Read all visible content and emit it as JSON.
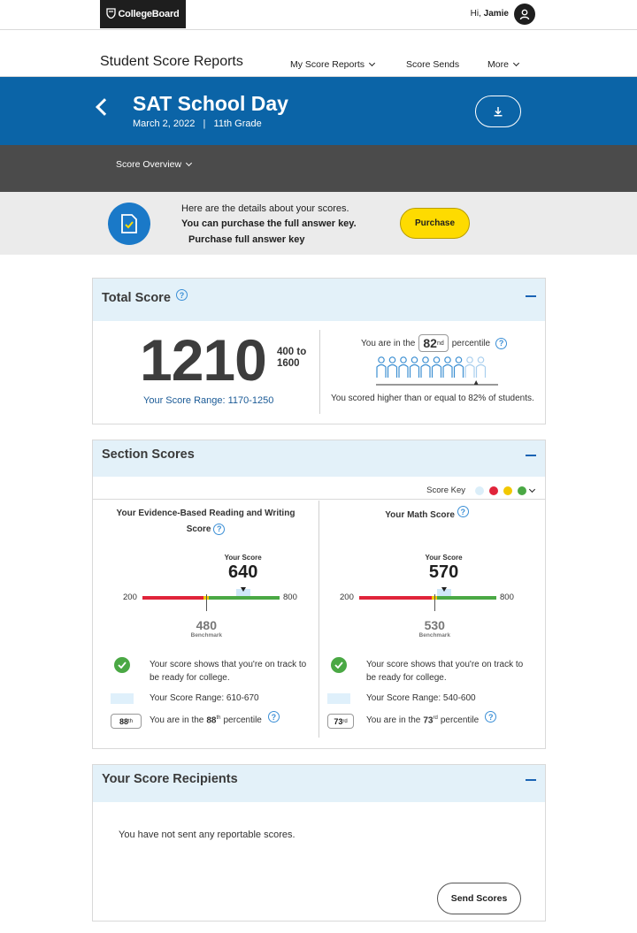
{
  "header": {
    "logo": "CollegeBoard",
    "greeting_prefix": "Hi,",
    "user_name": "Jamie"
  },
  "subnav": {
    "title": "Student Score Reports",
    "links": [
      "My Score Reports",
      "Score Sends",
      "More"
    ]
  },
  "hero": {
    "title": "SAT School Day",
    "subtitle": "March 2, 2022   |   11th Grade"
  },
  "tabbar": {
    "tab": "Score Overview"
  },
  "info": {
    "line1": "Here are the details about your scores.",
    "line2": "You can purchase the full answer key.",
    "line3": "Purchase full answer key",
    "purchase_button": "Purchase"
  },
  "total": {
    "heading": "Total Score",
    "score": "1210",
    "scale": "400 to 1600",
    "range": "Your Score Range: 1170-1250",
    "percentile_prefix": "You are in the",
    "percentile": "82",
    "percentile_sup": "nd",
    "percentile_suffix": "percentile",
    "percentile_fraction": 0.82,
    "higher_text": "You scored higher than or equal to 82% of students."
  },
  "sections": {
    "heading": "Section Scores",
    "score_key_label": "Score Key",
    "key_colors": [
      "#dbeef9",
      "#e0243a",
      "#f2c800",
      "#4aa844"
    ],
    "ebrw": {
      "title_line1": "Your Evidence-Based Reading and Writing",
      "title_line2": "Score",
      "your_score_label": "Your Score",
      "score": "640",
      "score_value": 640,
      "min": "200",
      "max": "800",
      "benchmark": "480",
      "benchmark_value": 480,
      "benchmark_label": "Benchmark",
      "status": "Your score shows that you're on track to be ready for college.",
      "range": "Your Score Range: 610-670",
      "percentile": "88",
      "percentile_sup": "th",
      "pct_prefix": "You are in the",
      "pct_suffix": "percentile"
    },
    "math": {
      "title_line1": "Your Math Score",
      "your_score_label": "Your Score",
      "score": "570",
      "score_value": 570,
      "min": "200",
      "max": "800",
      "benchmark": "530",
      "benchmark_value": 530,
      "benchmark_label": "Benchmark",
      "status": "Your score shows that you're on track to be ready for college.",
      "range": "Your Score Range: 540-600",
      "percentile": "73",
      "percentile_sup": "rd",
      "pct_prefix": "You are in the",
      "pct_suffix": "percentile"
    }
  },
  "recipients": {
    "heading": "Your Score Recipients",
    "empty_text": "You have not sent any reportable scores.",
    "send_button": "Send Scores"
  }
}
